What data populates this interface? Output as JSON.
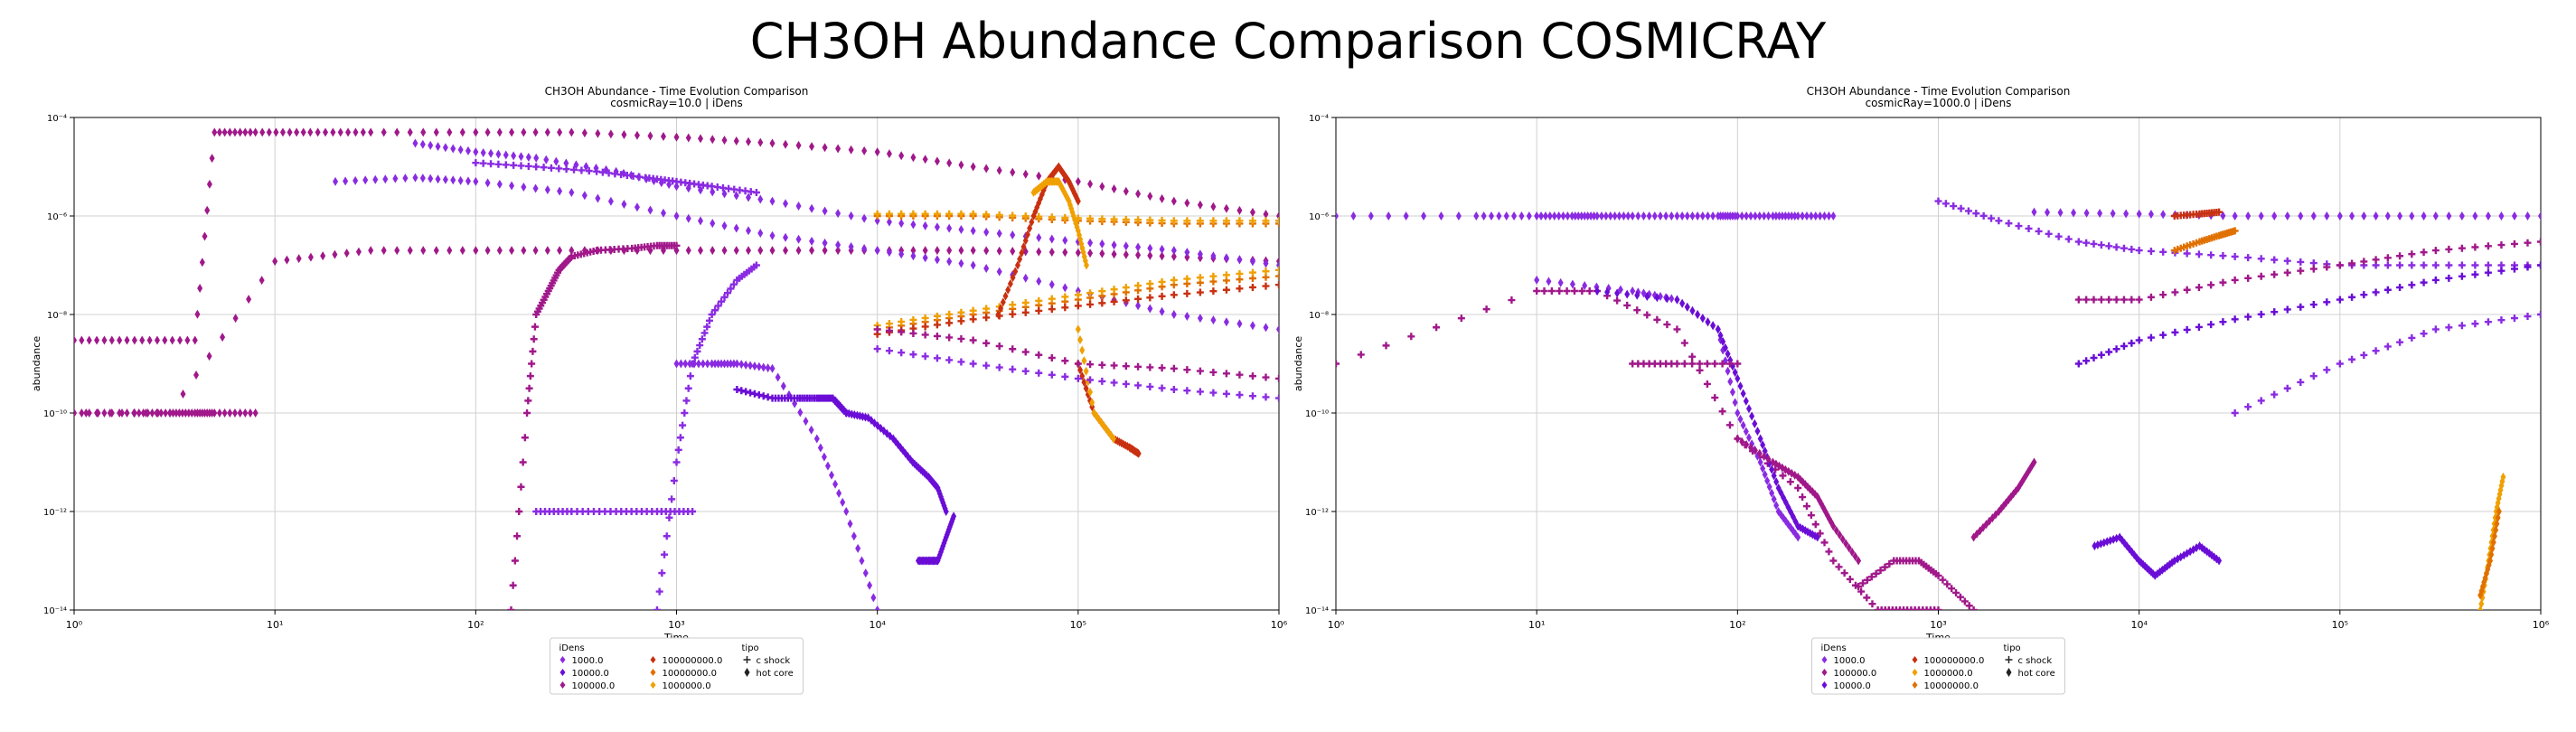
{
  "suptitle": "CH3OH Abundance Comparison COSMICRAY",
  "colors": {
    "1000.0": "#8a2be2",
    "10000.0": "#6a0dd6",
    "100000.0": "#a0188a",
    "1000000.0": "#f0a000",
    "10000000.0": "#e07000",
    "100000000.0": "#c83010"
  },
  "chart_data": [
    {
      "type": "scatter",
      "title": "CH3OH Abundance - Time Evolution Comparison",
      "subtitle": "cosmicRay=10.0 | iDens",
      "xlabel": "Time",
      "ylabel": "abundance",
      "xscale": "log",
      "yscale": "log",
      "xlim": [
        1,
        1000000
      ],
      "ylim": [
        1e-14,
        0.0001
      ],
      "xticks": [
        "10⁰",
        "10¹",
        "10²",
        "10³",
        "10⁴",
        "10⁵",
        "10⁶"
      ],
      "yticks": [
        "10⁻¹⁴",
        "10⁻¹²",
        "10⁻¹⁰",
        "10⁻⁸",
        "10⁻⁶",
        "10⁻⁴"
      ],
      "grid": true,
      "legend": {
        "placement": "below",
        "title_idens": "iDens",
        "title_tipo": "tipo",
        "idens": [
          "1000.0",
          "10000.0",
          "100000.0",
          "100000000.0",
          "10000000.0",
          "1000000.0"
        ],
        "tipo": [
          "c shock",
          "hot core"
        ]
      },
      "series": [
        {
          "iDens": "100000.0",
          "tipo": "hot core",
          "x": [
            1,
            2,
            4,
            5,
            8,
            15,
            30,
            100,
            300,
            1000,
            3000,
            10000,
            30000,
            100000,
            300000,
            1000000
          ],
          "y": [
            3e-09,
            3e-09,
            3e-09,
            5e-05,
            5e-05,
            5e-05,
            5e-05,
            5e-05,
            5e-05,
            4e-05,
            3e-05,
            2e-05,
            1e-05,
            5e-06,
            2e-06,
            1e-06
          ]
        },
        {
          "iDens": "100000.0",
          "tipo": "hot core",
          "x": [
            1,
            3,
            10,
            30,
            100,
            300,
            1000,
            3000,
            10000,
            30000,
            100000,
            300000,
            1000000
          ],
          "y": [
            1e-10,
            1e-10,
            1.2e-07,
            2e-07,
            2e-07,
            2e-07,
            2e-07,
            2e-07,
            2e-07,
            2e-07,
            1.8e-07,
            1.5e-07,
            1.2e-07
          ]
        },
        {
          "iDens": "1000.0",
          "tipo": "hot core",
          "x": [
            20,
            50,
            100,
            300,
            1000,
            3000,
            10000,
            30000,
            100000,
            300000,
            1000000
          ],
          "y": [
            5e-06,
            6e-06,
            5e-06,
            3e-06,
            1e-06,
            4e-07,
            2e-07,
            1e-07,
            3e-08,
            1e-08,
            5e-09
          ]
        },
        {
          "iDens": "1000.0",
          "tipo": "hot core",
          "x": [
            50,
            100,
            200,
            500,
            1000,
            3000,
            10000,
            30000,
            100000,
            300000,
            1000000
          ],
          "y": [
            3e-05,
            2e-05,
            1.5e-05,
            8e-06,
            4e-06,
            2e-06,
            8e-07,
            5e-07,
            3e-07,
            2e-07,
            1e-07
          ]
        },
        {
          "iDens": "1000.0",
          "tipo": "c shock",
          "x": [
            100,
            200,
            400,
            700,
            1000,
            1500,
            2500
          ],
          "y": [
            1.2e-05,
            1e-05,
            8e-06,
            6e-06,
            5e-06,
            4e-06,
            3e-06
          ]
        },
        {
          "iDens": "100000.0",
          "tipo": "c shock",
          "x": [
            150,
            180,
            200,
            230,
            260,
            300,
            400,
            600,
            800,
            1000
          ],
          "y": [
            1e-14,
            1e-10,
            1e-08,
            3e-08,
            8e-08,
            1.5e-07,
            2e-07,
            2.2e-07,
            2.5e-07,
            2.5e-07
          ]
        },
        {
          "iDens": "1000.0",
          "tipo": "c shock",
          "x": [
            800,
            1000,
            1200,
            1500,
            2000,
            2500
          ],
          "y": [
            1e-14,
            1e-11,
            1e-09,
            1e-08,
            5e-08,
            1e-07
          ]
        },
        {
          "iDens": "1000.0",
          "tipo": "hot core",
          "x": [
            1000,
            1500,
            2000,
            3000,
            5000,
            7000,
            10000
          ],
          "y": [
            1e-09,
            1e-09,
            1e-09,
            8e-10,
            3e-11,
            1e-12,
            1e-14
          ]
        },
        {
          "iDens": "10000.0",
          "tipo": "c shock",
          "x": [
            2000,
            3000,
            4000,
            5000,
            6000,
            7000
          ],
          "y": [
            3e-10,
            2e-10,
            2e-10,
            2e-10,
            2e-10,
            1e-10
          ]
        },
        {
          "iDens": "10000.0",
          "tipo": "hot core",
          "x": [
            7000,
            9000,
            12000,
            15000,
            18000,
            20000,
            22000
          ],
          "y": [
            1e-10,
            8e-11,
            3e-11,
            1e-11,
            5e-12,
            3e-12,
            1e-12
          ]
        },
        {
          "iDens": "10000.0",
          "tipo": "hot core",
          "x": [
            16000,
            18000,
            20000,
            22000,
            24000
          ],
          "y": [
            1e-13,
            1e-13,
            1e-13,
            3e-13,
            8e-13
          ]
        },
        {
          "iDens": "10000000.0",
          "tipo": "c shock",
          "x": [
            10000,
            30000,
            100000,
            300000,
            1000000
          ],
          "y": [
            1e-06,
            1e-06,
            8e-07,
            7e-07,
            7e-07
          ]
        },
        {
          "iDens": "1000000.0",
          "tipo": "c shock",
          "x": [
            10000,
            30000,
            100000,
            300000,
            1000000
          ],
          "y": [
            1.1e-06,
            1.1e-06,
            9e-07,
            8e-07,
            8e-07
          ]
        },
        {
          "iDens": "10000000.0",
          "tipo": "c shock",
          "x": [
            10000,
            30000,
            100000,
            300000,
            1000000
          ],
          "y": [
            5e-09,
            1e-08,
            2e-08,
            4e-08,
            6e-08
          ]
        },
        {
          "iDens": "1000000.0",
          "tipo": "c shock",
          "x": [
            10000,
            30000,
            100000,
            300000,
            1000000
          ],
          "y": [
            6e-09,
            1.2e-08,
            2.5e-08,
            5e-08,
            8e-08
          ]
        },
        {
          "iDens": "100000000.0",
          "tipo": "c shock",
          "x": [
            10000,
            30000,
            100000,
            300000,
            1000000
          ],
          "y": [
            4e-09,
            8e-09,
            1.5e-08,
            2.5e-08,
            4e-08
          ]
        },
        {
          "iDens": "100000000.0",
          "tipo": "hot core",
          "x": [
            40000,
            50000,
            60000,
            70000,
            80000,
            90000,
            100000
          ],
          "y": [
            1e-08,
            1e-07,
            1e-06,
            5e-06,
            1e-05,
            5e-06,
            2e-06
          ]
        },
        {
          "iDens": "1000000.0",
          "tipo": "hot core",
          "x": [
            60000,
            70000,
            80000,
            90000,
            100000,
            110000
          ],
          "y": [
            3e-06,
            5e-06,
            5e-06,
            2e-06,
            5e-07,
            1e-07
          ]
        },
        {
          "iDens": "100000000.0",
          "tipo": "hot core",
          "x": [
            100000,
            120000,
            150000,
            180000,
            200000
          ],
          "y": [
            1e-09,
            1e-10,
            3e-11,
            2e-11,
            1.5e-11
          ]
        },
        {
          "iDens": "1000000.0",
          "tipo": "hot core",
          "x": [
            100000,
            120000,
            150000
          ],
          "y": [
            5e-09,
            1e-10,
            3e-11
          ]
        },
        {
          "iDens": "100000.0",
          "tipo": "c shock",
          "x": [
            10000,
            30000,
            100000,
            300000,
            1000000
          ],
          "y": [
            5e-09,
            3e-09,
            1e-09,
            8e-10,
            5e-10
          ]
        },
        {
          "iDens": "1000.0",
          "tipo": "c shock",
          "x": [
            10000,
            30000,
            100000,
            300000,
            1000000
          ],
          "y": [
            2e-09,
            1e-09,
            5e-10,
            3e-10,
            2e-10
          ]
        },
        {
          "iDens": "1000.0",
          "tipo": "c shock",
          "x": [
            200,
            300,
            500,
            800,
            1200
          ],
          "y": [
            1e-12,
            1e-12,
            1e-12,
            1e-12,
            1e-12
          ]
        },
        {
          "iDens": "100000.0",
          "tipo": "hot core",
          "x": [
            1,
            2,
            3,
            4,
            5,
            8
          ],
          "y": [
            1e-10,
            1e-10,
            1e-10,
            1e-10,
            1e-10,
            1e-10
          ]
        }
      ]
    },
    {
      "type": "scatter",
      "title": "CH3OH Abundance - Time Evolution Comparison",
      "subtitle": "cosmicRay=1000.0 | iDens",
      "xlabel": "Time",
      "ylabel": "abundance",
      "xscale": "log",
      "yscale": "log",
      "xlim": [
        1,
        1000000
      ],
      "ylim": [
        1e-14,
        0.0001
      ],
      "xticks": [
        "10⁰",
        "10¹",
        "10²",
        "10³",
        "10⁴",
        "10⁵",
        "10⁶"
      ],
      "yticks": [
        "10⁻¹⁴",
        "10⁻¹²",
        "10⁻¹⁰",
        "10⁻⁸",
        "10⁻⁶",
        "10⁻⁴"
      ],
      "grid": true,
      "legend": {
        "placement": "below",
        "title_idens": "iDens",
        "title_tipo": "tipo",
        "idens": [
          "1000.0",
          "100000.0",
          "10000.0",
          "100000000.0",
          "1000000.0",
          "10000000.0"
        ],
        "tipo": [
          "c shock",
          "hot core"
        ]
      },
      "series": [
        {
          "iDens": "1000.0",
          "tipo": "hot core",
          "x": [
            3000,
            10000,
            30000,
            100000,
            300000,
            1000000
          ],
          "y": [
            1.2e-06,
            1.1e-06,
            1e-06,
            1e-06,
            1e-06,
            1e-06
          ]
        },
        {
          "iDens": "1000.0",
          "tipo": "hot core",
          "x": [
            1,
            5,
            10,
            15,
            20,
            30,
            50,
            80,
            100,
            150,
            200,
            300
          ],
          "y": [
            1e-06,
            1e-06,
            1e-06,
            1e-06,
            1e-06,
            1e-06,
            1e-06,
            1e-06,
            1e-06,
            1e-06,
            1e-06,
            1e-06
          ]
        },
        {
          "iDens": "1000.0",
          "tipo": "c shock",
          "x": [
            1000,
            2000,
            5000,
            10000,
            30000,
            100000,
            300000,
            1000000
          ],
          "y": [
            2e-06,
            8e-07,
            3e-07,
            2e-07,
            1.5e-07,
            1e-07,
            1e-07,
            1e-07
          ]
        },
        {
          "iDens": "100000.0",
          "tipo": "c shock",
          "x": [
            5000,
            10000,
            30000,
            100000,
            300000,
            1000000
          ],
          "y": [
            2e-08,
            2e-08,
            5e-08,
            1e-07,
            2e-07,
            3e-07
          ]
        },
        {
          "iDens": "10000.0",
          "tipo": "c shock",
          "x": [
            5000,
            10000,
            30000,
            100000,
            300000,
            1000000
          ],
          "y": [
            1e-09,
            3e-09,
            8e-09,
            2e-08,
            5e-08,
            1e-07
          ]
        },
        {
          "iDens": "1000.0",
          "tipo": "c shock",
          "x": [
            30000,
            100000,
            300000,
            1000000
          ],
          "y": [
            1e-10,
            1e-09,
            5e-09,
            1e-08
          ]
        },
        {
          "iDens": "100000.0",
          "tipo": "c shock",
          "x": [
            1,
            10,
            20,
            50,
            100,
            200,
            300,
            500,
            700,
            1000
          ],
          "y": [
            1e-09,
            3e-08,
            3e-08,
            5e-09,
            3e-11,
            3e-12,
            1e-13,
            1e-14,
            1e-14,
            1e-14
          ]
        },
        {
          "iDens": "1000.0",
          "tipo": "hot core",
          "x": [
            10,
            30,
            50,
            80,
            100,
            130,
            160,
            200
          ],
          "y": [
            5e-08,
            3e-08,
            2e-08,
            5e-09,
            1e-10,
            1e-11,
            1e-12,
            3e-13
          ]
        },
        {
          "iDens": "10000.0",
          "tipo": "hot core",
          "x": [
            20,
            50,
            80,
            100,
            130,
            160,
            200,
            250
          ],
          "y": [
            3e-08,
            2e-08,
            5e-09,
            5e-10,
            3e-11,
            3e-12,
            5e-13,
            3e-13
          ]
        },
        {
          "iDens": "100000.0",
          "tipo": "hot core",
          "x": [
            100,
            150,
            200,
            250,
            300,
            400
          ],
          "y": [
            3e-11,
            1e-11,
            5e-12,
            2e-12,
            5e-13,
            1e-13
          ]
        },
        {
          "iDens": "100000.0",
          "tipo": "c shock",
          "x": [
            400,
            600,
            800,
            1000,
            1500
          ],
          "y": [
            3e-14,
            1e-13,
            1e-13,
            5e-14,
            1e-14
          ]
        },
        {
          "iDens": "100000.0",
          "tipo": "hot core",
          "x": [
            1500,
            2000,
            2500,
            3000
          ],
          "y": [
            3e-13,
            1e-12,
            3e-12,
            1e-11
          ]
        },
        {
          "iDens": "10000.0",
          "tipo": "hot core",
          "x": [
            6000,
            8000,
            10000,
            12000,
            15000,
            20000,
            25000
          ],
          "y": [
            2e-13,
            3e-13,
            1e-13,
            5e-14,
            1e-13,
            2e-13,
            1e-13
          ]
        },
        {
          "iDens": "10000000.0",
          "tipo": "c shock",
          "x": [
            15000,
            20000,
            25000,
            30000
          ],
          "y": [
            2e-07,
            3e-07,
            4e-07,
            5e-07
          ]
        },
        {
          "iDens": "100000000.0",
          "tipo": "c shock",
          "x": [
            15000,
            20000,
            25000
          ],
          "y": [
            1e-06,
            1.1e-06,
            1.2e-06
          ]
        },
        {
          "iDens": "1000000.0",
          "tipo": "hot core",
          "x": [
            500000,
            550000,
            600000,
            650000
          ],
          "y": [
            1e-14,
            1e-13,
            1e-12,
            5e-12
          ]
        },
        {
          "iDens": "10000000.0",
          "tipo": "hot core",
          "x": [
            500000,
            560000,
            620000
          ],
          "y": [
            2e-14,
            1e-13,
            1e-12
          ]
        },
        {
          "iDens": "100000.0",
          "tipo": "c shock",
          "x": [
            30,
            50,
            100
          ],
          "y": [
            1e-09,
            1e-09,
            1e-09
          ]
        }
      ]
    }
  ]
}
